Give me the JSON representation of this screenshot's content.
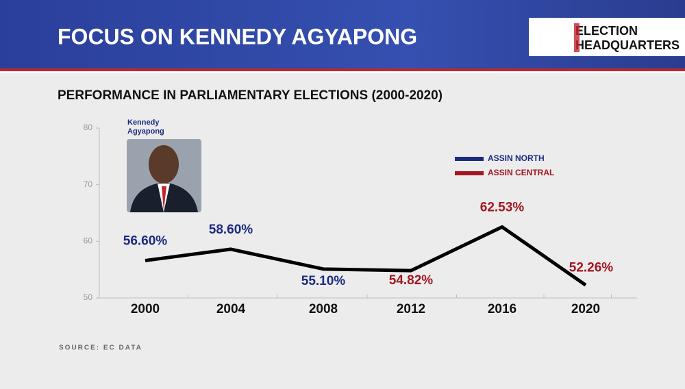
{
  "header": {
    "title": "FOCUS ON KENNEDY AGYAPONG",
    "logo": [
      "ELECTION",
      "HEADQUARTERS"
    ]
  },
  "photo_caption": [
    "Kennedy",
    "Agyapong"
  ],
  "source": "SOURCE: EC DATA",
  "chart_data": {
    "type": "line",
    "title": "PERFORMANCE IN PARLIAMENTARY ELECTIONS (2000-2020)",
    "categories": [
      "2000",
      "2004",
      "2008",
      "2012",
      "2016",
      "2020"
    ],
    "line_color": "#000000",
    "series": [
      {
        "name": "ASSIN NORTH",
        "color": "#1b2a80",
        "values": [
          56.6,
          58.6,
          55.1,
          null,
          null,
          null
        ],
        "value_labels": [
          "56.60%",
          "58.60%",
          "55.10%",
          null,
          null,
          null
        ]
      },
      {
        "name": "ASSIN CENTRAL",
        "color": "#a31621",
        "values": [
          null,
          null,
          null,
          54.82,
          62.53,
          52.26
        ],
        "value_labels": [
          null,
          null,
          null,
          "54.82%",
          "62.53%",
          "52.26%"
        ]
      }
    ],
    "ylim": [
      50,
      80
    ],
    "yticks": [
      50,
      60,
      70,
      80
    ]
  }
}
